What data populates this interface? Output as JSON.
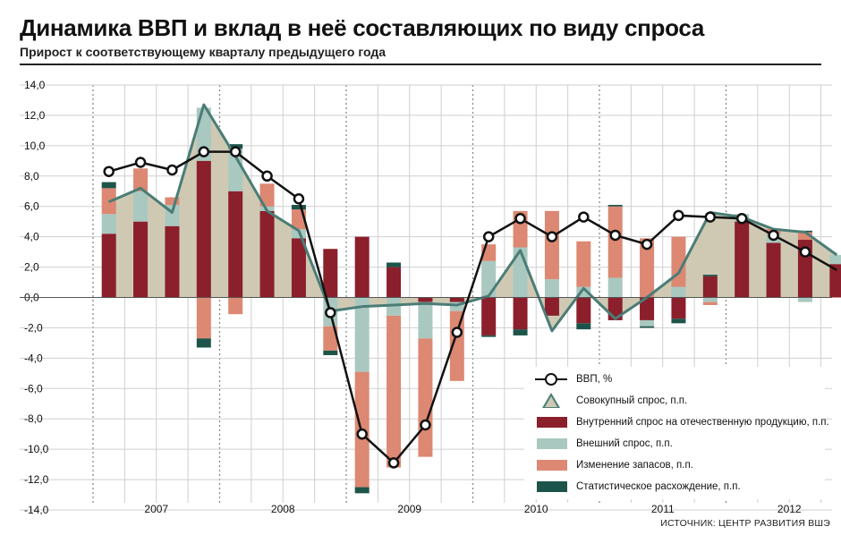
{
  "title": "Динамика ВВП и вклад в неё составляющих по виду спроса",
  "subtitle": "Прирост к соответствующему кварталу предыдущего года",
  "source": "ИСТОЧНИК: ЦЕНТР РАЗВИТИЯ ВШЭ",
  "colors": {
    "domestic": "#8b1f2b",
    "external": "#a9c8c0",
    "inventory": "#dc8872",
    "discrepancy": "#1d544a",
    "aggregate_fill": "#cfc9b4",
    "aggregate_line": "#4a7d76",
    "gdp_line": "#111111",
    "grid": "#cfcfcf"
  },
  "legend": {
    "gdp": "ВВП, %",
    "aggregate": "Совокупный спрос, п.п.",
    "domestic": "Внутренний спрос на отечественную продукцию, п.п.",
    "external": "Внешний спрос, п.п.",
    "inventory": "Изменение запасов, п.п.",
    "discrepancy": "Статистическое расхождение, п.п."
  },
  "chart_data": {
    "type": "bar",
    "title": "Динамика ВВП и вклад в неё составляющих по виду спроса",
    "subtitle": "Прирост к соответствующему кварталу предыдущего года",
    "ylim": [
      -14,
      14
    ],
    "yticks": [
      "14,0",
      "12,0",
      "10,0",
      "8,0",
      "6,0",
      "4,0",
      "2,0",
      "0,0",
      "-2,0",
      "-4,0",
      "-6,0",
      "-8,0",
      "-10,0",
      "-12,0",
      "-14,0"
    ],
    "year_labels": [
      "2007",
      "2008",
      "2009",
      "2010",
      "2011",
      "2012"
    ],
    "quarters_per_year": 4,
    "grid": true,
    "legend_position": "bottom-right",
    "series": [
      {
        "key": "domestic",
        "name": "Внутренний спрос на отечественную продукцию, п.п.",
        "values": [
          4.2,
          5.0,
          4.7,
          9.0,
          7.0,
          5.7,
          3.9,
          3.2,
          4.0,
          2.0,
          -0.3,
          -0.3,
          -2.5,
          -2.1,
          -1.2,
          -1.7,
          -1.5,
          -1.5,
          -1.4,
          1.4,
          5.0,
          3.6,
          3.8,
          2.2
        ]
      },
      {
        "key": "external",
        "name": "Внешний спрос, п.п.",
        "values": [
          1.3,
          2.0,
          1.4,
          3.5,
          2.8,
          0.3,
          0.6,
          -1.9,
          -4.9,
          -1.2,
          -2.4,
          -0.6,
          2.4,
          3.3,
          1.2,
          0.7,
          1.3,
          -0.4,
          0.7,
          -0.3,
          0.5,
          0.6,
          -0.3,
          0.6
        ]
      },
      {
        "key": "inventory",
        "name": "Изменение запасов, п.п.",
        "values": [
          1.7,
          1.5,
          0.5,
          -2.7,
          -1.1,
          1.5,
          1.3,
          -1.6,
          -7.6,
          -10.0,
          -7.8,
          -4.6,
          1.1,
          2.4,
          4.5,
          3.0,
          4.7,
          3.9,
          3.3,
          -0.2,
          0.0,
          0.3,
          0.5,
          0.0
        ]
      },
      {
        "key": "discrepancy",
        "name": "Статистическое расхождение, п.п.",
        "values": [
          0.4,
          0.0,
          0.0,
          -0.6,
          0.3,
          0.0,
          0.3,
          -0.3,
          -0.4,
          0.3,
          0.0,
          0.0,
          -0.1,
          -0.4,
          0.0,
          -0.4,
          0.1,
          -0.1,
          -0.3,
          0.1,
          0.0,
          0.0,
          0.1,
          0.0
        ]
      },
      {
        "key": "aggregate",
        "name": "Совокупный спрос, п.п.",
        "values": [
          6.3,
          7.2,
          5.6,
          12.7,
          9.3,
          5.7,
          4.4,
          -0.9,
          -0.6,
          -0.5,
          -0.4,
          -0.5,
          0.1,
          3.1,
          -2.2,
          0.6,
          -1.4,
          0.0,
          1.6,
          5.6,
          5.3,
          4.5,
          4.3,
          2.8
        ]
      },
      {
        "key": "gdp",
        "name": "ВВП, %",
        "values": [
          8.3,
          8.9,
          8.4,
          9.6,
          9.6,
          8.0,
          6.5,
          -1.0,
          -9.0,
          -10.9,
          -8.4,
          -2.3,
          4.0,
          5.2,
          4.0,
          5.3,
          4.1,
          3.5,
          5.4,
          5.3,
          5.2,
          4.1,
          3.0,
          1.8
        ]
      }
    ]
  }
}
